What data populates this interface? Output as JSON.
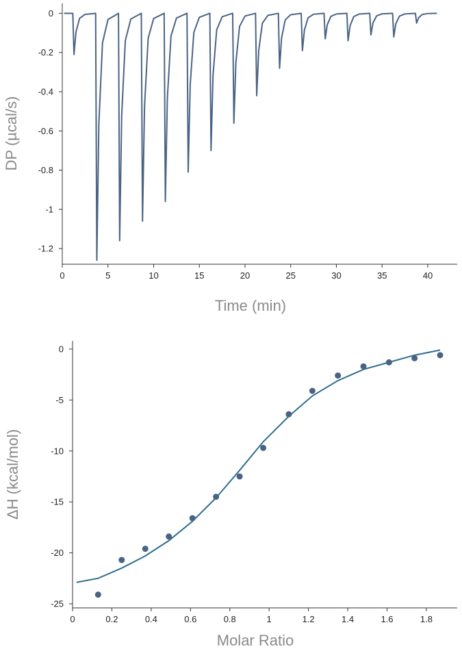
{
  "colors": {
    "trace": "#4a6384",
    "fit": "#2e6e8e",
    "points": "#4a6384",
    "axis": "#333333",
    "axis_title": "#8a8a8a"
  },
  "chart_data": [
    {
      "type": "line",
      "title": "",
      "xlabel": "Time (min)",
      "ylabel": "DP (µcal/s)",
      "xlim": [
        0,
        43
      ],
      "ylim": [
        -1.28,
        0.04
      ],
      "x_ticks": [
        0,
        5,
        10,
        15,
        20,
        25,
        30,
        35,
        40
      ],
      "x_tick_labels": [
        "0",
        "5",
        "10",
        "15",
        "20",
        "25",
        "30",
        "35",
        "40"
      ],
      "y_ticks": [
        0,
        -0.2,
        -0.4,
        -0.6,
        -0.8,
        -1,
        -1.2
      ],
      "y_tick_labels": [
        "0",
        "-0.2",
        "-0.4",
        "-0.6",
        "-0.8",
        "-1",
        "-1.2"
      ],
      "grid": false,
      "baseline": 0,
      "trace_start": 0.2,
      "trace_end": 41,
      "series": [
        {
          "injections": [
            {
              "time": 1.2,
              "min": -0.21
            },
            {
              "time": 3.7,
              "min": -1.26
            },
            {
              "time": 6.2,
              "min": -1.16
            },
            {
              "time": 8.7,
              "min": -1.06
            },
            {
              "time": 11.2,
              "min": -0.96
            },
            {
              "time": 13.7,
              "min": -0.81
            },
            {
              "time": 16.2,
              "min": -0.7
            },
            {
              "time": 18.7,
              "min": -0.56
            },
            {
              "time": 21.2,
              "min": -0.42
            },
            {
              "time": 23.7,
              "min": -0.28
            },
            {
              "time": 26.2,
              "min": -0.19
            },
            {
              "time": 28.7,
              "min": -0.13
            },
            {
              "time": 31.2,
              "min": -0.14
            },
            {
              "time": 33.7,
              "min": -0.11
            },
            {
              "time": 36.2,
              "min": -0.12
            },
            {
              "time": 38.7,
              "min": -0.05
            }
          ]
        }
      ]
    },
    {
      "type": "scatter",
      "title": "",
      "xlabel": "Molar Ratio",
      "ylabel": "ΔH (kcal/mol)",
      "xlim": [
        0,
        1.95
      ],
      "ylim": [
        -25.4,
        0.8
      ],
      "x_ticks": [
        0,
        0.2,
        0.4,
        0.6,
        0.8,
        1,
        1.2,
        1.4,
        1.6,
        1.8
      ],
      "x_tick_labels": [
        "0",
        "0.2",
        "0.4",
        "0.6",
        "0.8",
        "1",
        "1.2",
        "1.4",
        "1.6",
        "1.8"
      ],
      "y_ticks": [
        0,
        -5,
        -10,
        -15,
        -20,
        -25
      ],
      "y_tick_labels": [
        "0",
        "-5",
        "-10",
        "-15",
        "-20",
        "-25"
      ],
      "grid": false,
      "series": [
        {
          "x": [
            0.13,
            0.25,
            0.37,
            0.49,
            0.61,
            0.73,
            0.85,
            0.97,
            1.1,
            1.22,
            1.35,
            1.48,
            1.61,
            1.74,
            1.87
          ],
          "y": [
            -24.1,
            -20.7,
            -19.6,
            -18.4,
            -16.6,
            -14.5,
            -12.5,
            -9.7,
            -6.4,
            -4.1,
            -2.6,
            -1.7,
            -1.3,
            -0.9,
            -0.6
          ]
        },
        {
          "x": [
            0.02,
            0.13,
            0.25,
            0.37,
            0.49,
            0.61,
            0.73,
            0.85,
            0.97,
            1.1,
            1.22,
            1.35,
            1.48,
            1.61,
            1.74,
            1.87
          ],
          "y": [
            -22.9,
            -22.5,
            -21.5,
            -20.3,
            -18.8,
            -16.9,
            -14.6,
            -11.9,
            -9.1,
            -6.6,
            -4.6,
            -3.1,
            -2.0,
            -1.3,
            -0.6,
            -0.1
          ]
        }
      ]
    }
  ]
}
